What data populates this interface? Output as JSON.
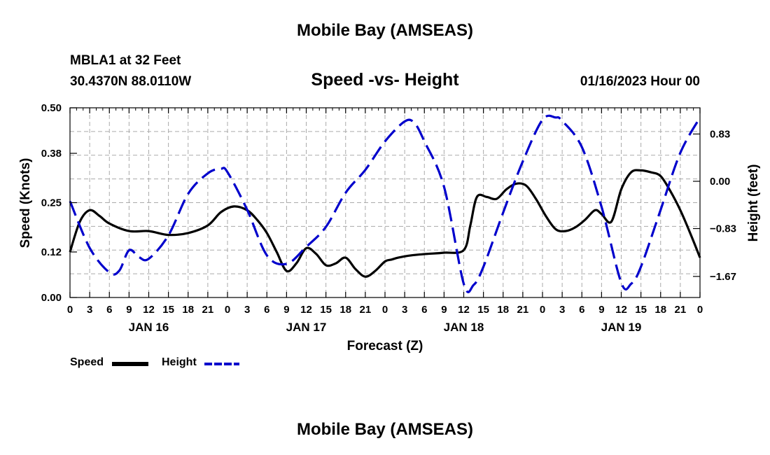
{
  "header": {
    "title": "Mobile Bay (AMSEAS)",
    "station": "MBLA1 at 32 Feet",
    "coords": "30.4370N  88.0110W",
    "subtitle": "Speed -vs- Height",
    "datetime": "01/16/2023 Hour 00"
  },
  "footer": {
    "title": "Mobile Bay (AMSEAS)"
  },
  "legend": {
    "speed_label": "Speed",
    "height_label": "Height"
  },
  "colors": {
    "speed": "#000000",
    "height": "#0000cc",
    "grid": "#aaaaaa"
  },
  "chart_data": {
    "type": "line",
    "title": "Speed -vs- Height",
    "xlabel": "Forecast (Z)",
    "ylabel": "Speed (Knots)",
    "y2label": "Height (feet)",
    "x_range": [
      0,
      96
    ],
    "ylim": [
      0,
      0.5
    ],
    "y2lim": [
      -2.04,
      1.29
    ],
    "x_ticks": [
      0,
      3,
      6,
      9,
      12,
      15,
      18,
      21,
      24,
      27,
      30,
      33,
      36,
      39,
      42,
      45,
      48,
      51,
      54,
      57,
      60,
      63,
      66,
      69,
      72,
      75,
      78,
      81,
      84,
      87,
      90,
      93,
      96
    ],
    "x_tick_labels": [
      "0",
      "3",
      "6",
      "9",
      "12",
      "15",
      "18",
      "21",
      "0",
      "3",
      "6",
      "9",
      "12",
      "15",
      "18",
      "21",
      "0",
      "3",
      "6",
      "9",
      "12",
      "15",
      "18",
      "21",
      "0",
      "3",
      "6",
      "9",
      "12",
      "15",
      "18",
      "21",
      "0"
    ],
    "day_labels": [
      {
        "hour": 12,
        "label": "JAN 16"
      },
      {
        "hour": 36,
        "label": "JAN 17"
      },
      {
        "hour": 60,
        "label": "JAN 18"
      },
      {
        "hour": 84,
        "label": "JAN 19"
      }
    ],
    "y_ticks": [
      0.0,
      0.12,
      0.25,
      0.38,
      0.5
    ],
    "y_tick_labels": [
      "0.00",
      "0.12",
      "0.25",
      "0.38",
      "0.50"
    ],
    "y2_ticks": [
      0.83,
      0.0,
      -0.83,
      -1.67
    ],
    "y2_tick_labels": [
      "0.83",
      "0.00",
      "−0.83",
      "−1.67"
    ],
    "series": [
      {
        "name": "Speed",
        "axis": "left",
        "style": "solid",
        "x": [
          0,
          1.5,
          3,
          4.5,
          6,
          9,
          12,
          15,
          18,
          21,
          23,
          25,
          27,
          28.5,
          30,
          31.5,
          33,
          34.5,
          36,
          37.5,
          39,
          40.5,
          42,
          43.5,
          45,
          46.5,
          48,
          49,
          50,
          51.5,
          53,
          54.5,
          57,
          60,
          61,
          62,
          63.5,
          65,
          66.5,
          68,
          69.5,
          71,
          72.5,
          74,
          75.5,
          77,
          78.5,
          80,
          81,
          82.5,
          84,
          85.5,
          87,
          88.5,
          90,
          91.5,
          93,
          94.5,
          96
        ],
        "values": [
          0.12,
          0.2,
          0.23,
          0.215,
          0.195,
          0.175,
          0.175,
          0.165,
          0.17,
          0.19,
          0.225,
          0.24,
          0.23,
          0.205,
          0.17,
          0.12,
          0.07,
          0.09,
          0.13,
          0.115,
          0.085,
          0.09,
          0.105,
          0.075,
          0.055,
          0.07,
          0.095,
          0.1,
          0.105,
          0.11,
          0.113,
          0.115,
          0.118,
          0.125,
          0.19,
          0.265,
          0.265,
          0.26,
          0.285,
          0.3,
          0.295,
          0.26,
          0.215,
          0.18,
          0.175,
          0.185,
          0.205,
          0.23,
          0.22,
          0.2,
          0.285,
          0.33,
          0.335,
          0.33,
          0.32,
          0.28,
          0.23,
          0.17,
          0.105
        ]
      },
      {
        "name": "Height",
        "axis": "right",
        "style": "dashed",
        "x": [
          0,
          3,
          6,
          7.5,
          9,
          10.5,
          12,
          15,
          18,
          21,
          23,
          24,
          27,
          30,
          33,
          36,
          39,
          42,
          45,
          48,
          51,
          52.5,
          54,
          57,
          60,
          61.5,
          63,
          66,
          69,
          72,
          74,
          75,
          78,
          81,
          84,
          85.5,
          87,
          90,
          93,
          96
        ],
        "values": [
          -0.35,
          -1.17,
          -1.6,
          -1.57,
          -1.21,
          -1.33,
          -1.36,
          -0.95,
          -0.22,
          0.14,
          0.22,
          0.16,
          -0.5,
          -1.3,
          -1.45,
          -1.15,
          -0.8,
          -0.2,
          0.2,
          0.7,
          1.05,
          1.02,
          0.7,
          -0.1,
          -1.8,
          -1.82,
          -1.5,
          -0.55,
          0.35,
          1.08,
          1.12,
          1.06,
          0.6,
          -0.45,
          -1.78,
          -1.8,
          -1.5,
          -0.5,
          0.5,
          1.12
        ]
      }
    ]
  }
}
